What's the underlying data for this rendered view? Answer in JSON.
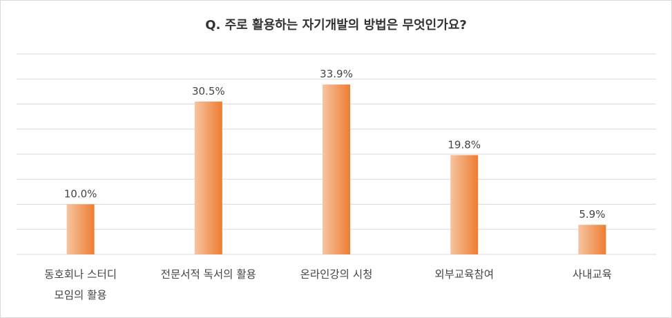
{
  "chart_data": {
    "type": "bar",
    "title": "Q. 주로 활용하는 자기개발의 방법은 무엇인가요?",
    "categories": [
      [
        "동호회나 스터디",
        "모임의 활용"
      ],
      [
        "전문서적 독서의 활용"
      ],
      [
        "온라인강의 시청"
      ],
      [
        "외부교육참여"
      ],
      [
        "사내교육"
      ]
    ],
    "values": [
      10.0,
      30.5,
      33.9,
      19.8,
      5.9
    ],
    "data_labels": [
      "10.0%",
      "30.5%",
      "33.9%",
      "19.8%",
      "5.9%"
    ],
    "ylim": [
      0,
      40
    ],
    "grid": true,
    "legend": "none",
    "colors": {
      "bar_dark": "#ED7D31",
      "bar_light": "#F7C4A0",
      "grid": "#d9d9d9"
    }
  }
}
